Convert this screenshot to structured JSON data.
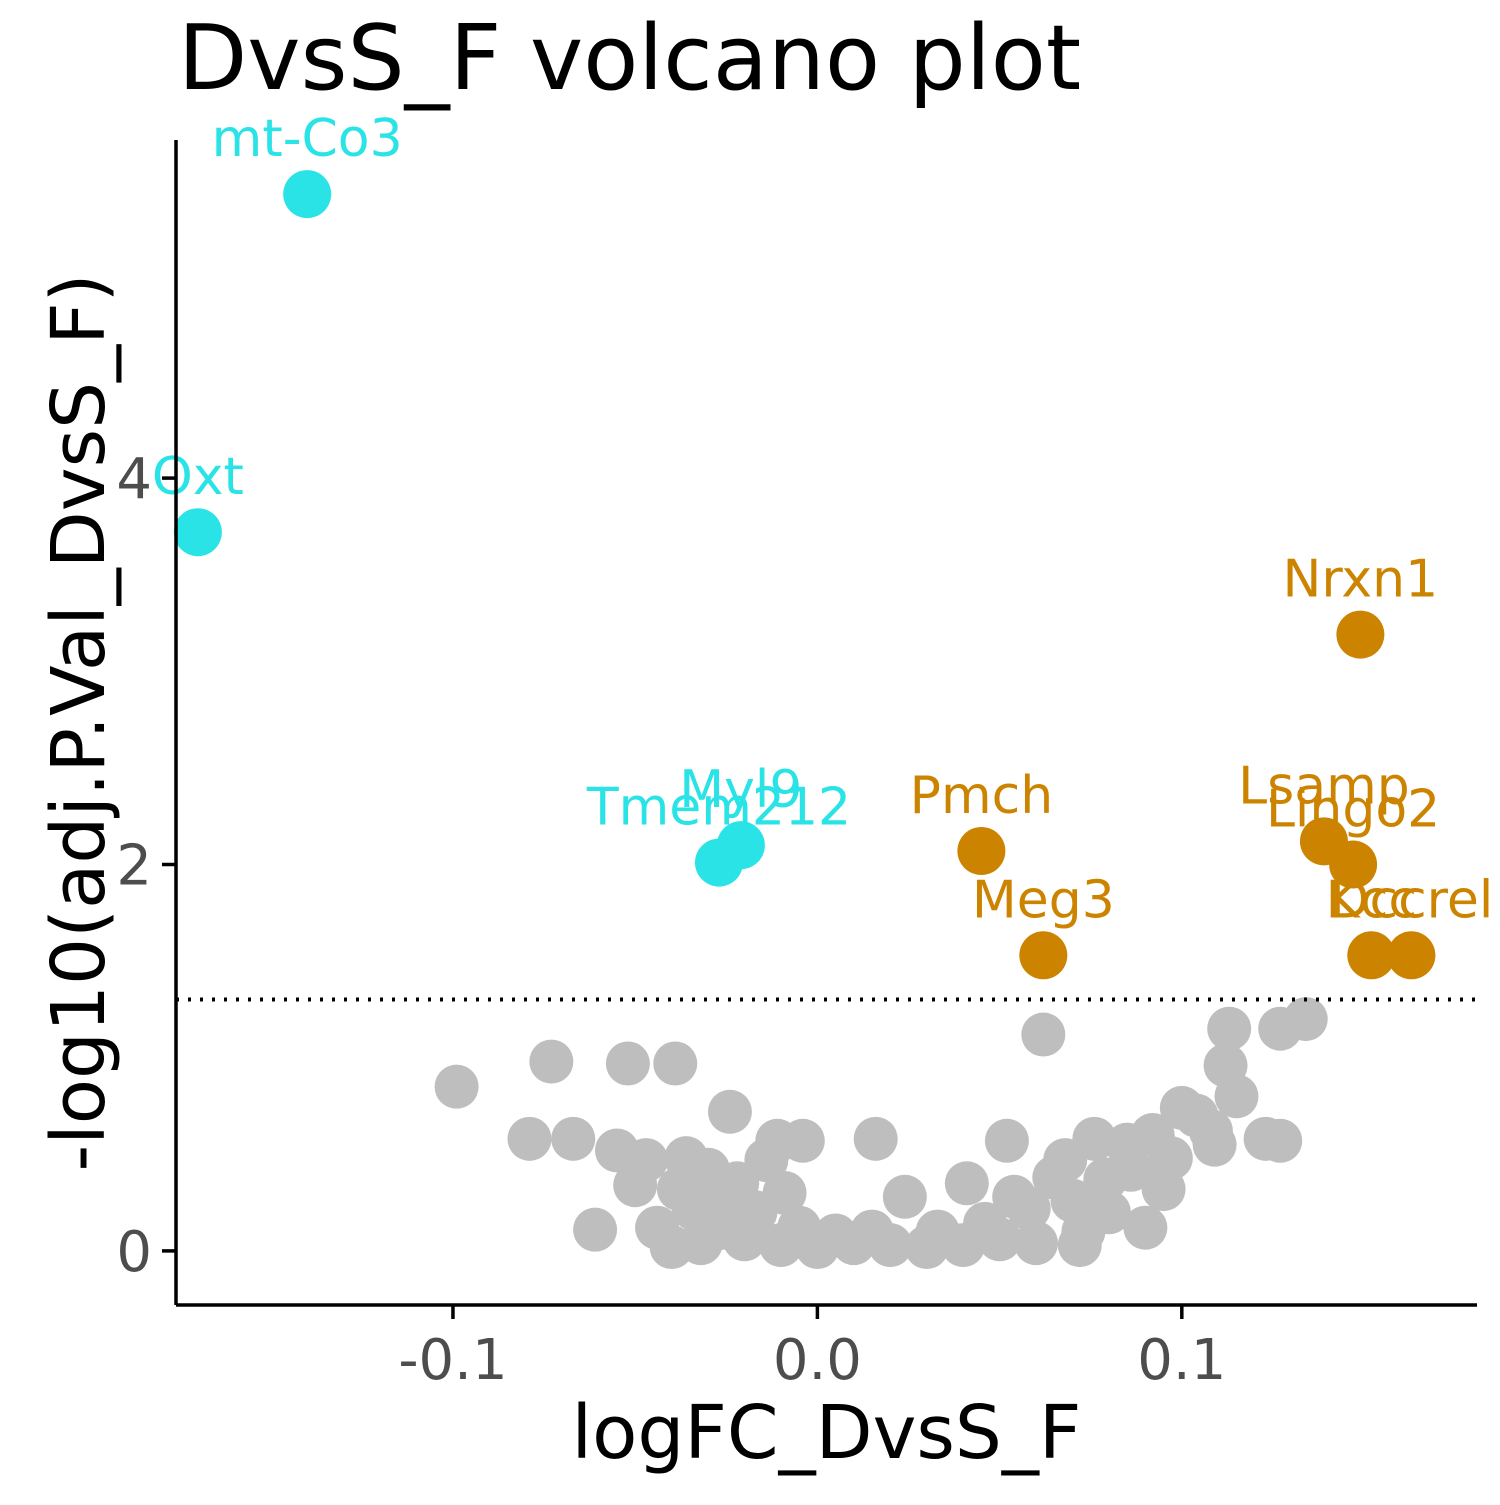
{
  "chart_data": {
    "type": "scatter",
    "title": "DvsS_F volcano plot",
    "xlabel": "logFC_DvsS_F",
    "ylabel": "-log10(adj.P.Val_DvsS_F)",
    "xlim": [
      -0.176,
      0.181
    ],
    "ylim": [
      -0.28,
      5.75
    ],
    "x_ticks": [
      -0.1,
      0.0,
      0.1
    ],
    "x_tick_labels": [
      "-0.1",
      "0.0",
      "0.1"
    ],
    "y_ticks": [
      0,
      2,
      4
    ],
    "y_tick_labels": [
      "0",
      "2",
      "4"
    ],
    "threshold_y": 1.301,
    "grid": false,
    "colors": {
      "down": "#29E3E6",
      "up": "#CC8400",
      "nonsignificant": "#BEBEBE",
      "axis": "#000000",
      "tick_label": "#4D4D4D"
    },
    "labeled_genes": [
      {
        "gene": "mt-Co3",
        "x": -0.14,
        "y": 5.47,
        "direction": "down"
      },
      {
        "gene": "Oxt",
        "x": -0.17,
        "y": 3.72,
        "direction": "down"
      },
      {
        "gene": "Myl9",
        "x": -0.021,
        "y": 2.1,
        "direction": "down"
      },
      {
        "gene": "Tmem212",
        "x": -0.027,
        "y": 2.01,
        "direction": "down"
      },
      {
        "gene": "Nrxn1",
        "x": 0.149,
        "y": 3.19,
        "direction": "up"
      },
      {
        "gene": "Pmch",
        "x": 0.045,
        "y": 2.07,
        "direction": "up"
      },
      {
        "gene": "Lsamp",
        "x": 0.139,
        "y": 2.12,
        "direction": "up"
      },
      {
        "gene": "Lingo2",
        "x": 0.147,
        "y": 2.0,
        "direction": "up"
      },
      {
        "gene": "Meg3",
        "x": 0.062,
        "y": 1.53,
        "direction": "up"
      },
      {
        "gene": "Kcc",
        "x": 0.152,
        "y": 1.53,
        "direction": "up"
      },
      {
        "gene": "Dccrel",
        "x": 0.163,
        "y": 1.53,
        "direction": "up"
      }
    ],
    "nonsignificant_points": [
      [
        -0.099,
        0.85
      ],
      [
        -0.073,
        0.98
      ],
      [
        -0.052,
        0.97
      ],
      [
        -0.039,
        0.97
      ],
      [
        -0.079,
        0.58
      ],
      [
        -0.067,
        0.58
      ],
      [
        -0.055,
        0.52
      ],
      [
        -0.061,
        0.11
      ],
      [
        -0.024,
        0.72
      ],
      [
        -0.011,
        0.57
      ],
      [
        -0.004,
        0.57
      ],
      [
        0.016,
        0.58
      ],
      [
        0.041,
        0.35
      ],
      [
        0.052,
        0.57
      ],
      [
        0.062,
        1.12
      ],
      [
        0.113,
        1.15
      ],
      [
        0.127,
        1.15
      ],
      [
        0.134,
        1.2
      ],
      [
        0.112,
        0.96
      ],
      [
        0.115,
        0.8
      ],
      [
        0.104,
        0.7
      ],
      [
        0.108,
        0.62
      ],
      [
        0.109,
        0.55
      ],
      [
        0.123,
        0.58
      ],
      [
        0.127,
        0.57
      ],
      [
        0.097,
        0.48
      ],
      [
        0.085,
        0.55
      ],
      [
        0.095,
        0.32
      ],
      [
        0.09,
        0.12
      ],
      [
        0.076,
        0.58
      ],
      [
        0.073,
        0.1
      ],
      [
        -0.047,
        0.47
      ],
      [
        -0.05,
        0.34
      ],
      [
        -0.038,
        0.32
      ],
      [
        -0.034,
        0.22
      ],
      [
        -0.03,
        0.42
      ],
      [
        -0.026,
        0.12
      ],
      [
        -0.014,
        0.47
      ],
      [
        -0.009,
        0.3
      ],
      [
        -0.005,
        0.12
      ],
      [
        -0.04,
        0.02
      ],
      [
        -0.032,
        0.04
      ],
      [
        -0.02,
        0.06
      ],
      [
        -0.01,
        0.03
      ],
      [
        0.0,
        0.02
      ],
      [
        0.01,
        0.04
      ],
      [
        0.02,
        0.03
      ],
      [
        0.03,
        0.02
      ],
      [
        0.04,
        0.03
      ],
      [
        0.05,
        0.06
      ],
      [
        0.06,
        0.04
      ],
      [
        0.072,
        0.03
      ],
      [
        0.024,
        0.28
      ],
      [
        0.033,
        0.1
      ],
      [
        0.065,
        0.38
      ],
      [
        0.07,
        0.26
      ],
      [
        0.08,
        0.2
      ],
      [
        0.086,
        0.42
      ],
      [
        0.092,
        0.6
      ],
      [
        0.1,
        0.74
      ],
      [
        0.058,
        0.22
      ],
      [
        0.046,
        0.14
      ],
      [
        0.015,
        0.1
      ],
      [
        -0.017,
        0.2
      ],
      [
        -0.022,
        0.35
      ],
      [
        -0.044,
        0.12
      ],
      [
        -0.036,
        0.48
      ],
      [
        0.079,
        0.37
      ],
      [
        0.068,
        0.47
      ],
      [
        0.054,
        0.28
      ],
      [
        0.005,
        0.08
      ],
      [
        -0.028,
        0.26
      ]
    ]
  }
}
